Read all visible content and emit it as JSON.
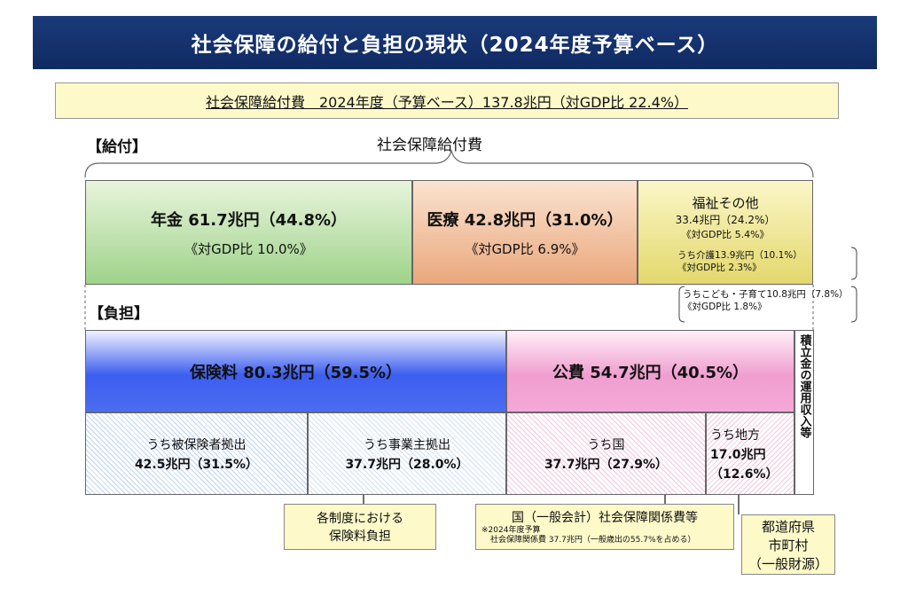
{
  "title": "社会保障の給付と負担の現状（2024年度予算ベース）",
  "summary": "社会保障給付費　2024年度（予算ベース）137.8兆円（対GDP比 22.4%）",
  "benefits": {
    "header": "【給付】",
    "total_label": "社会保障給付費",
    "pension": {
      "label": "年金 61.7兆円（44.8%）",
      "gdp": "《対GDP比 10.0%》"
    },
    "medical": {
      "label": "医療 42.8兆円（31.0%）",
      "gdp": "《対GDP比 6.9%》"
    },
    "welfare": {
      "label": "福祉その他",
      "value": "33.4兆円（24.2%）",
      "gdp": "《対GDP比 5.4%》"
    },
    "care": {
      "label": "うち介護13.9兆円（10.1%）",
      "gdp": "《対GDP比 2.3%》"
    },
    "children": {
      "label": "うちこども・子育て10.8兆円（7.8%）",
      "gdp": "《対GDP比 1.8%》"
    }
  },
  "burden": {
    "header": "【負担】",
    "insurance": "保険料 80.3兆円（59.5%）",
    "public": "公費 54.7兆円（40.5%）",
    "reserve": "積立金の運用収入等",
    "insured": {
      "label": "うち被保険者拠出",
      "value": "42.5兆円（31.5%）"
    },
    "employer": {
      "label": "うち事業主拠出",
      "value": "37.7兆円（28.0%）"
    },
    "national": {
      "label": "うち国",
      "value": "37.7兆円（27.9%）"
    },
    "local": {
      "label": "うち地方",
      "value": "17.0兆円",
      "pct": "（12.6%）"
    }
  },
  "callouts": {
    "insurance": [
      "各制度における",
      "保険料負担"
    ],
    "national": "国（一般会計）社会保障関係費等",
    "national_note1": "※2024年度予算",
    "national_note2": "社会保障関係費 37.7兆円（一般歳出の55.7%を占める）",
    "local": [
      "都道府県",
      "市町村",
      "（一般財源）"
    ]
  }
}
